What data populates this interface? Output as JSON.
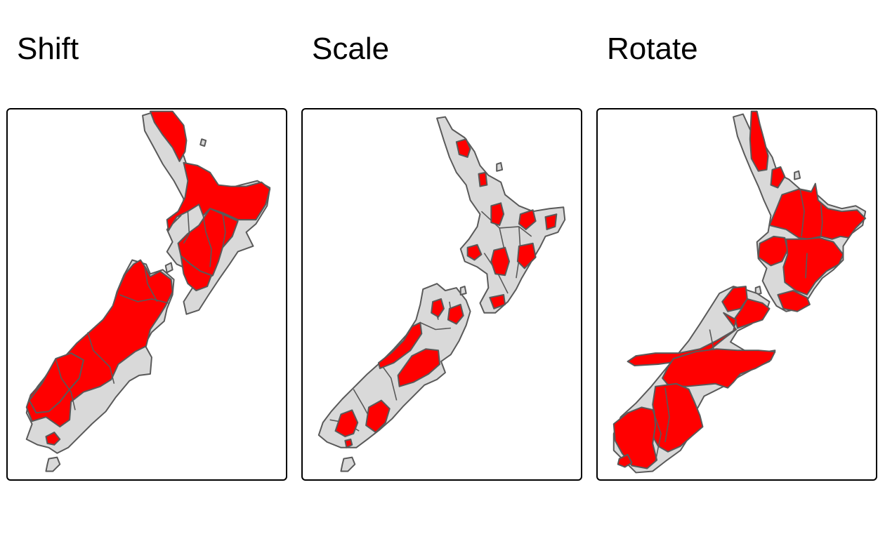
{
  "panels": [
    {
      "title": "Shift"
    },
    {
      "title": "Scale"
    },
    {
      "title": "Rotate"
    }
  ],
  "colors": {
    "land": "#d9d9d9",
    "highlight": "#ff0000",
    "border": "#595959",
    "frame": "#000000"
  }
}
